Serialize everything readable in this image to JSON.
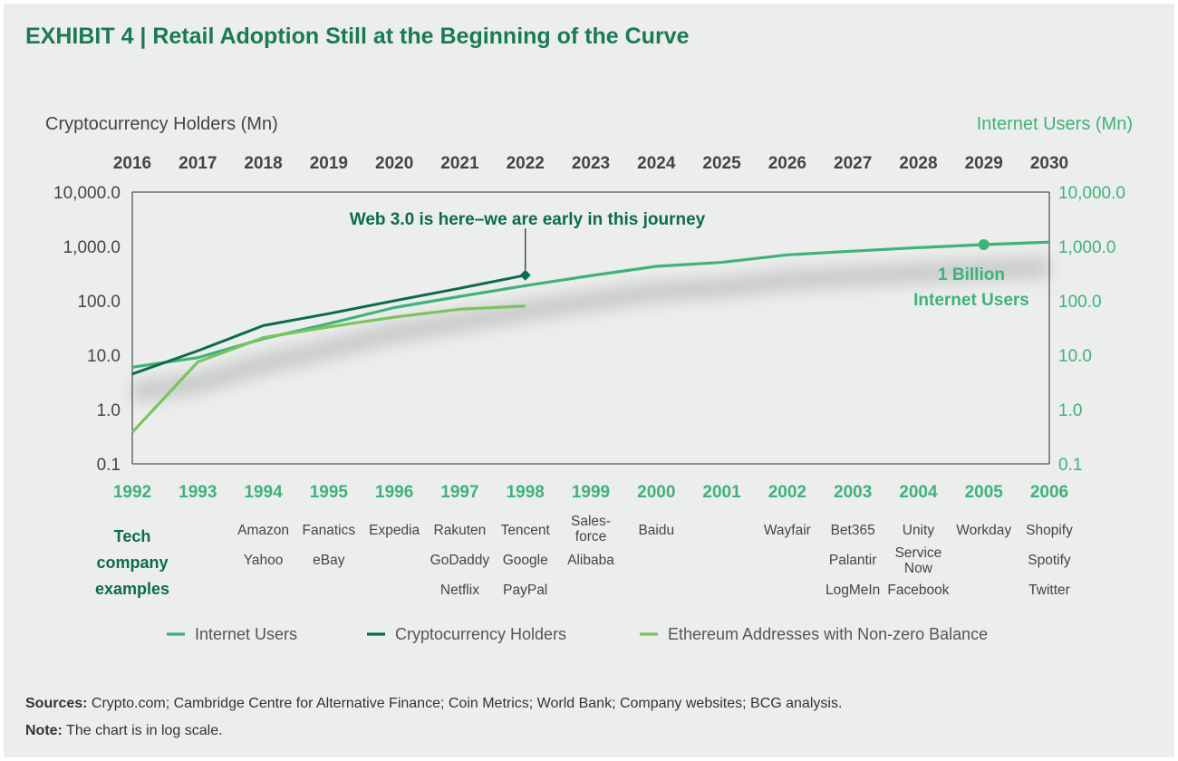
{
  "title": "EXHIBIT 4 | Retail Adoption Still at the Beginning of the Curve",
  "sources_label": "Sources:",
  "sources_text": " Crypto.com; Cambridge Centre for Alternative Finance; Coin Metrics; World Bank; Company websites; BCG analysis.",
  "note_label": "Note:",
  "note_text": " The chart is in log scale.",
  "colors": {
    "internet": "#3fb27a",
    "crypto": "#0b6b4c",
    "eth": "#79c45d",
    "dark_green": "#0b6b4c",
    "axis": "#555555"
  },
  "chart_data": {
    "type": "line",
    "scale": "log",
    "ylabel_left": "Cryptocurrency Holders (Mn)",
    "ylabel_right": "Internet Users (Mn)",
    "top_axis_years": [
      "2016",
      "2017",
      "2018",
      "2019",
      "2020",
      "2021",
      "2022",
      "2023",
      "2024",
      "2025",
      "2026",
      "2027",
      "2028",
      "2029",
      "2030"
    ],
    "bottom_axis_years": [
      "1992",
      "1993",
      "1994",
      "1995",
      "1996",
      "1997",
      "1998",
      "1999",
      "2000",
      "2001",
      "2002",
      "2003",
      "2004",
      "2005",
      "2006"
    ],
    "y_ticks": [
      0.1,
      1,
      10,
      100,
      1000,
      10000
    ],
    "y_tick_labels": [
      "0.1",
      "1.0",
      "10.0",
      "100.0",
      "1,000.0",
      "10,000.0"
    ],
    "ylim": [
      0.1,
      10000
    ],
    "series": [
      {
        "name": "Internet Users",
        "key": "internet",
        "values": [
          6,
          9,
          20,
          38,
          75,
          120,
          190,
          290,
          430,
          510,
          700,
          820,
          950,
          1080,
          1200
        ]
      },
      {
        "name": "Cryptocurrency Holders",
        "key": "crypto",
        "values": [
          4.5,
          12,
          35,
          58,
          100,
          170,
          295
        ]
      },
      {
        "name": "Ethereum Addresses with Non-zero Balance",
        "key": "eth",
        "values": [
          0.38,
          7.5,
          21,
          33,
          50,
          70,
          80
        ]
      }
    ],
    "annotations": [
      {
        "key": "web3",
        "text": "Web 3.0 is here–we are early in this journey",
        "series": "crypto",
        "index": 6
      },
      {
        "key": "billion",
        "line1": "1 Billion",
        "line2": "Internet Users",
        "series": "internet",
        "index": 13
      }
    ],
    "tech_label": [
      "Tech",
      "company",
      "examples"
    ],
    "tech_companies": [
      [],
      [],
      [
        "Amazon",
        "Yahoo"
      ],
      [
        "Fanatics",
        "eBay"
      ],
      [
        "Expedia"
      ],
      [
        "Rakuten",
        "GoDaddy",
        "Netflix"
      ],
      [
        "Tencent",
        "Google",
        "PayPal"
      ],
      [
        "Sales-\nforce",
        "Alibaba"
      ],
      [
        "Baidu"
      ],
      [],
      [
        "Wayfair"
      ],
      [
        "Bet365",
        "Palantir",
        "LogMeIn"
      ],
      [
        "Unity",
        "Service\nNow",
        "Facebook"
      ],
      [
        "Workday"
      ],
      [
        "Shopify",
        "Spotify",
        "Twitter"
      ]
    ]
  }
}
